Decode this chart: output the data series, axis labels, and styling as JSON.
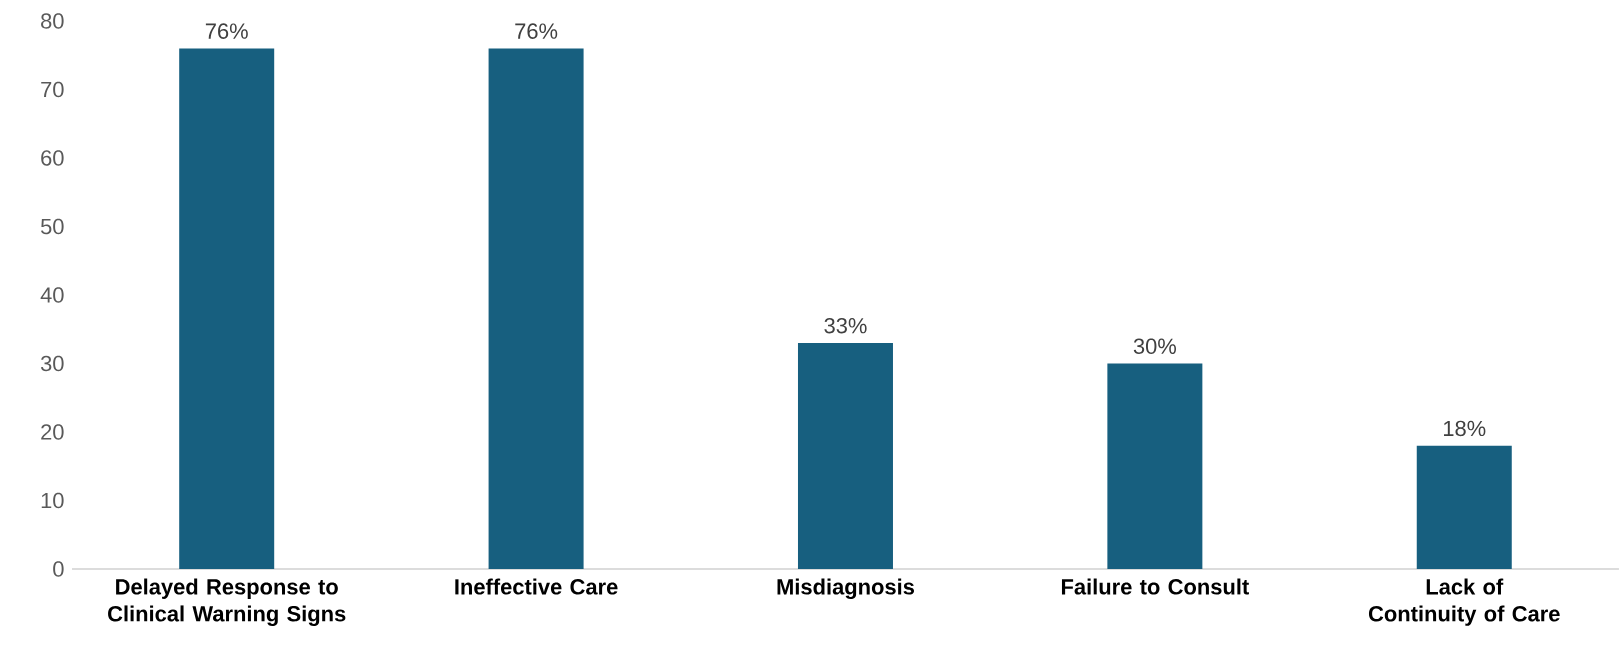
{
  "chart_data": {
    "type": "bar",
    "categories": [
      "Delayed Response to Clinical Warning Signs",
      "Ineffective Care",
      "Misdiagnosis",
      "Failure to Consult",
      "Lack of Continuity of Care"
    ],
    "values": [
      76,
      76,
      33,
      30,
      18
    ],
    "value_labels": [
      "76%",
      "76%",
      "33%",
      "30%",
      "18%"
    ],
    "color": "#175f7f",
    "ylim": [
      0,
      80
    ],
    "yticks": [
      0,
      10,
      20,
      30,
      40,
      50,
      60,
      70,
      80
    ]
  }
}
